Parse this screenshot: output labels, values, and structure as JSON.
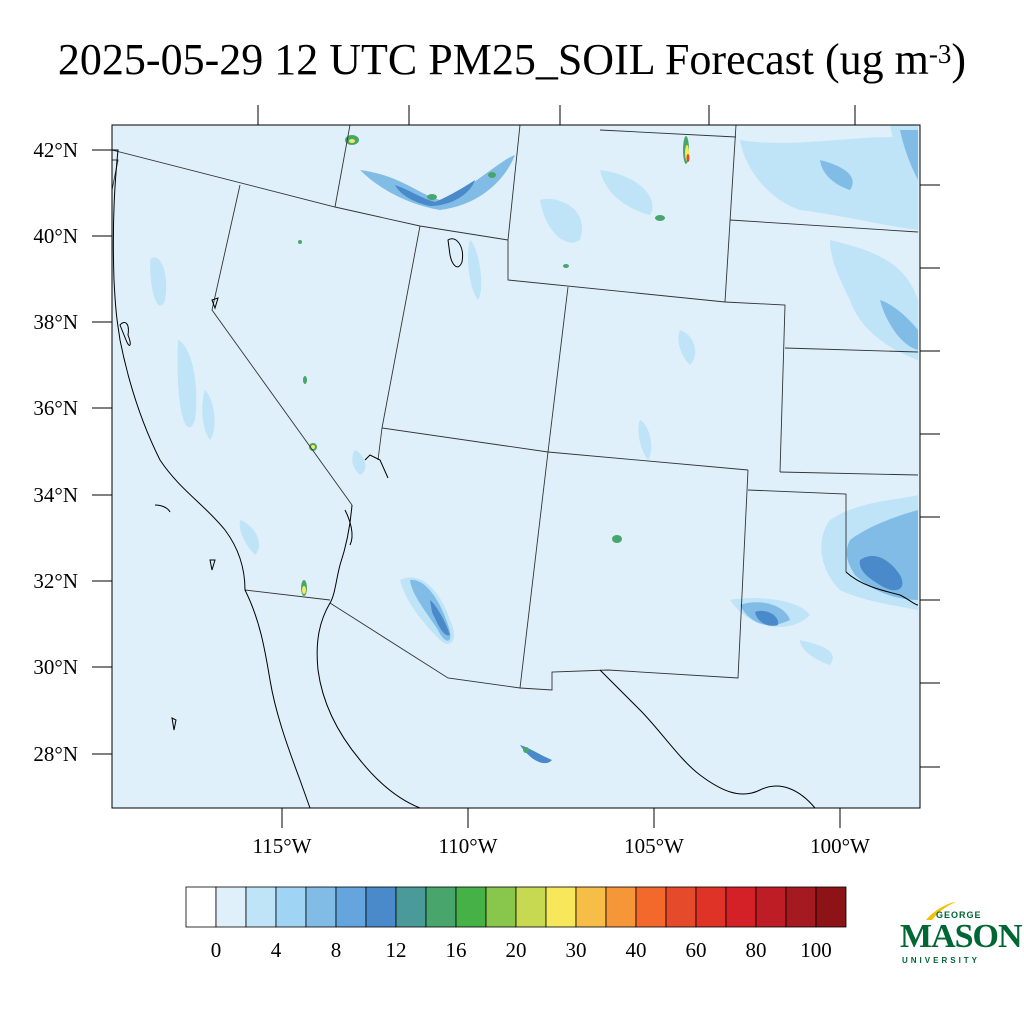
{
  "title": {
    "main": "2025-05-29 12 UTC PM25_SOIL Forecast (ug m",
    "exp": "-3",
    "close": ")"
  },
  "lat_labels": [
    "42°N",
    "40°N",
    "38°N",
    "36°N",
    "34°N",
    "32°N",
    "30°N",
    "28°N"
  ],
  "lon_labels": [
    "115°W",
    "110°W",
    "105°W",
    "100°W"
  ],
  "colorbar": {
    "labels": [
      "0",
      "4",
      "8",
      "12",
      "16",
      "20",
      "30",
      "40",
      "60",
      "80",
      "100"
    ],
    "colors": [
      "#ffffff",
      "#dff0fb",
      "#bfe3f7",
      "#9fd4f4",
      "#80bce6",
      "#65a5dd",
      "#4a8acb",
      "#4a9a9a",
      "#48a66c",
      "#46b146",
      "#88c64c",
      "#c7d951",
      "#f6e85a",
      "#f7be47",
      "#f59638",
      "#f2692b",
      "#e54a2a",
      "#de3326",
      "#d42128",
      "#bf1d25",
      "#a51921",
      "#8e1317"
    ]
  },
  "map_colors": {
    "background": "#dff0fb",
    "level1": "#bfe3f7",
    "level2": "#9fd4f4",
    "level3": "#80bce6",
    "level4": "#65a5dd",
    "level5": "#4a8acb",
    "green": "#48a66c",
    "yellow": "#f6e85a",
    "red": "#e54a2a"
  },
  "logo": {
    "top": "GEORGE",
    "name": "MASON",
    "bottom": "UNIVERSITY"
  }
}
